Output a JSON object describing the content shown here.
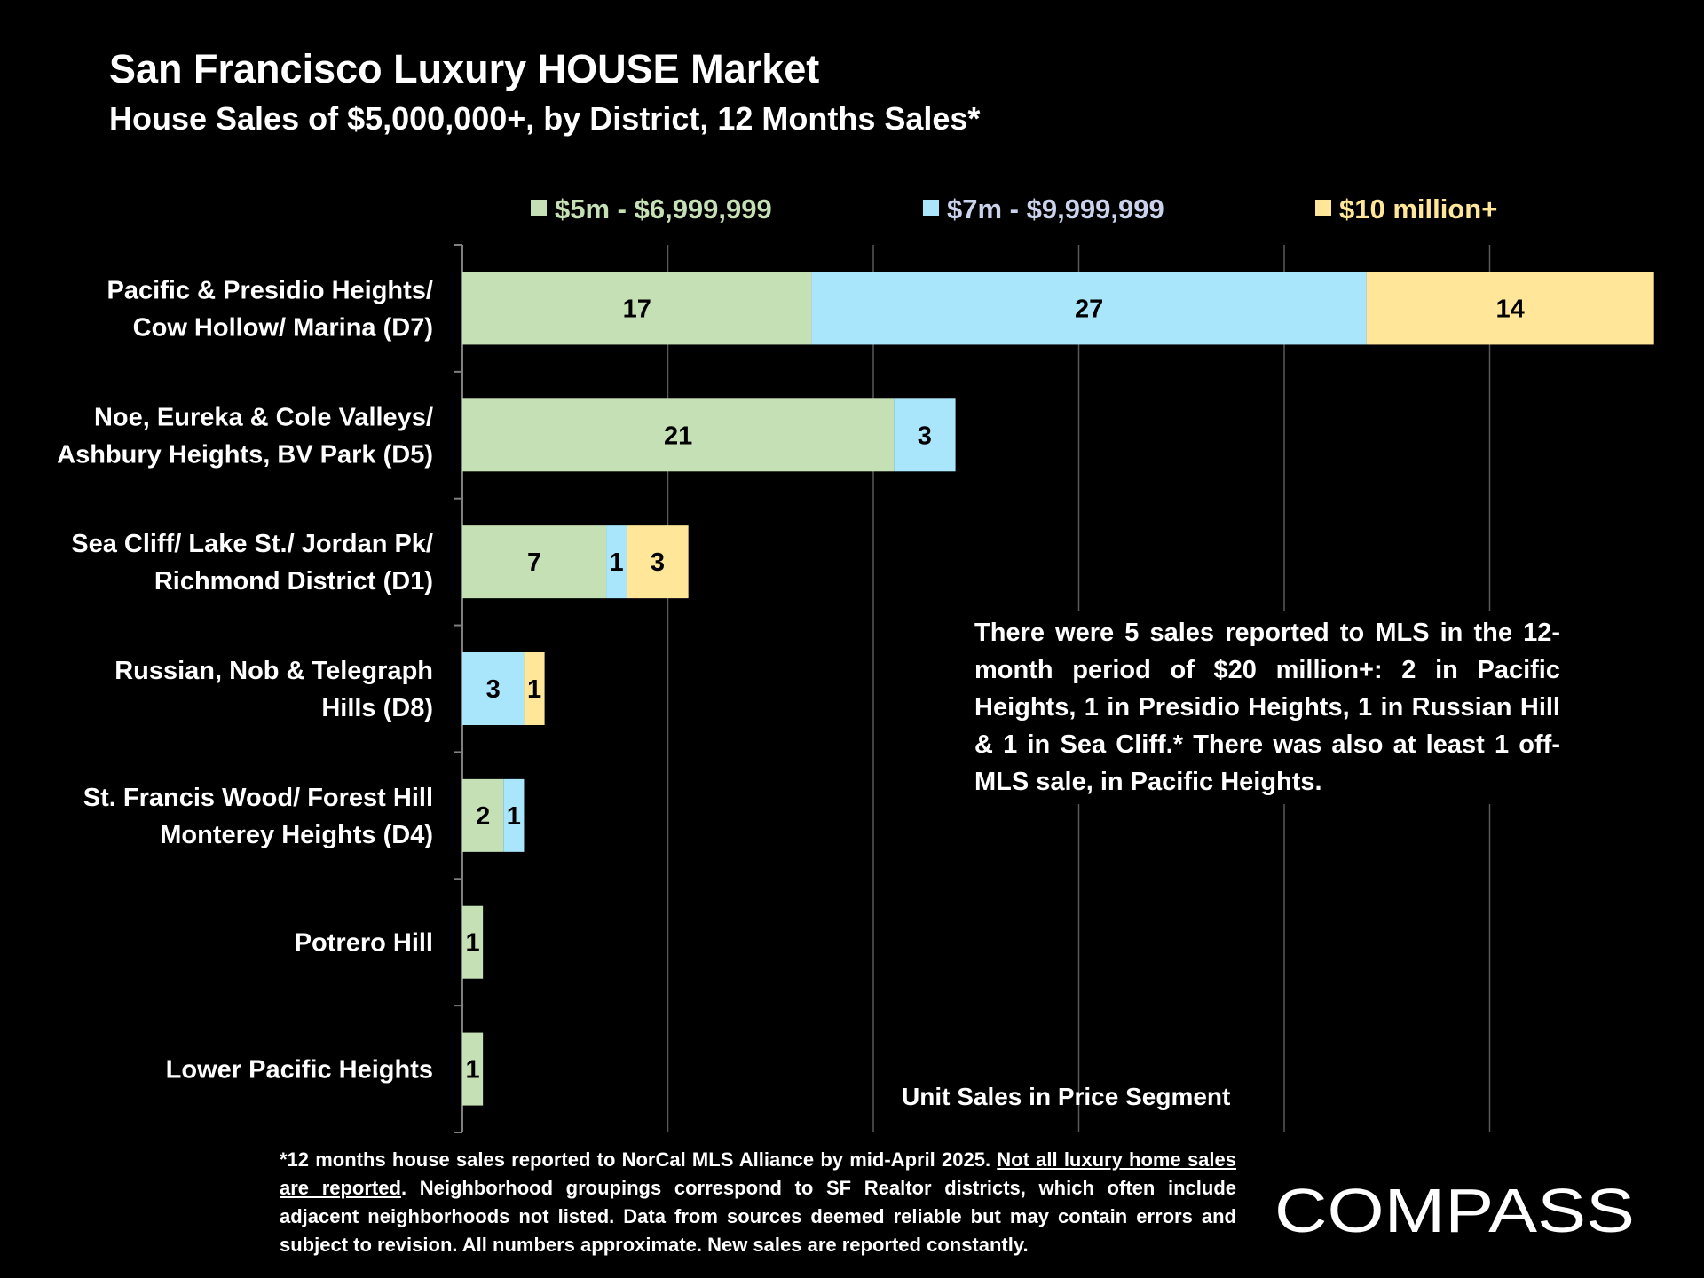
{
  "title": "San Francisco Luxury HOUSE Market",
  "subtitle": "House Sales of $5,000,000+, by District, 12 Months Sales*",
  "note": "There were 5 sales reported to MLS in the 12-month period of $20 million+: 2 in Pacific Heights, 1 in Presidio Heights, 1 in Russian Hill & 1 in Sea Cliff.* There was also at least 1 off-MLS sale, in Pacific Heights.",
  "footnote": {
    "part1": "*12 months house sales reported to NorCal MLS Alliance by mid-April 2025. ",
    "underlined": "Not all luxury home sales are reported",
    "part2": ". Neighborhood groupings correspond to SF Realtor districts, which often include adjacent neighborhoods not listed. Data from sources deemed reliable but may contain errors and subject to revision. All numbers approximate. New sales are reported constantly."
  },
  "logo_text": "COMPASS",
  "colors": {
    "background": "#000000",
    "seg1": "#c5e0b4",
    "seg2": "#a9e6fb",
    "seg3": "#ffe699",
    "legend1_text": "#c5e0b4",
    "legend2_text": "#c9d3ec",
    "legend3_text": "#ffe699",
    "grid": "#595959"
  },
  "chart_data": {
    "type": "bar",
    "orientation": "horizontal",
    "stacked": true,
    "xlabel": "Unit Sales in Price Segment",
    "xlim": [
      0,
      58
    ],
    "grid": true,
    "legend_position": "top",
    "categories": [
      [
        "Pacific & Presidio Heights/",
        "Cow Hollow/ Marina (D7)"
      ],
      [
        "Noe, Eureka & Cole Valleys/",
        "Ashbury Heights, BV Park (D5)"
      ],
      [
        "Sea Cliff/ Lake St./ Jordan Pk/",
        "Richmond District (D1)"
      ],
      [
        "Russian, Nob & Telegraph",
        "Hills (D8)"
      ],
      [
        "St. Francis Wood/ Forest Hill",
        "Monterey Heights (D4)"
      ],
      [
        "Potrero Hill"
      ],
      [
        "Lower Pacific Heights"
      ]
    ],
    "series": [
      {
        "name": "$5m - $6,999,999",
        "color_key": "seg1",
        "values": [
          17,
          21,
          7,
          0,
          2,
          1,
          1
        ]
      },
      {
        "name": "$7m - $9,999,999",
        "color_key": "seg2",
        "values": [
          27,
          3,
          1,
          3,
          1,
          0,
          0
        ]
      },
      {
        "name": "$10 million+",
        "color_key": "seg3",
        "values": [
          14,
          0,
          3,
          1,
          0,
          0,
          0
        ]
      }
    ]
  }
}
